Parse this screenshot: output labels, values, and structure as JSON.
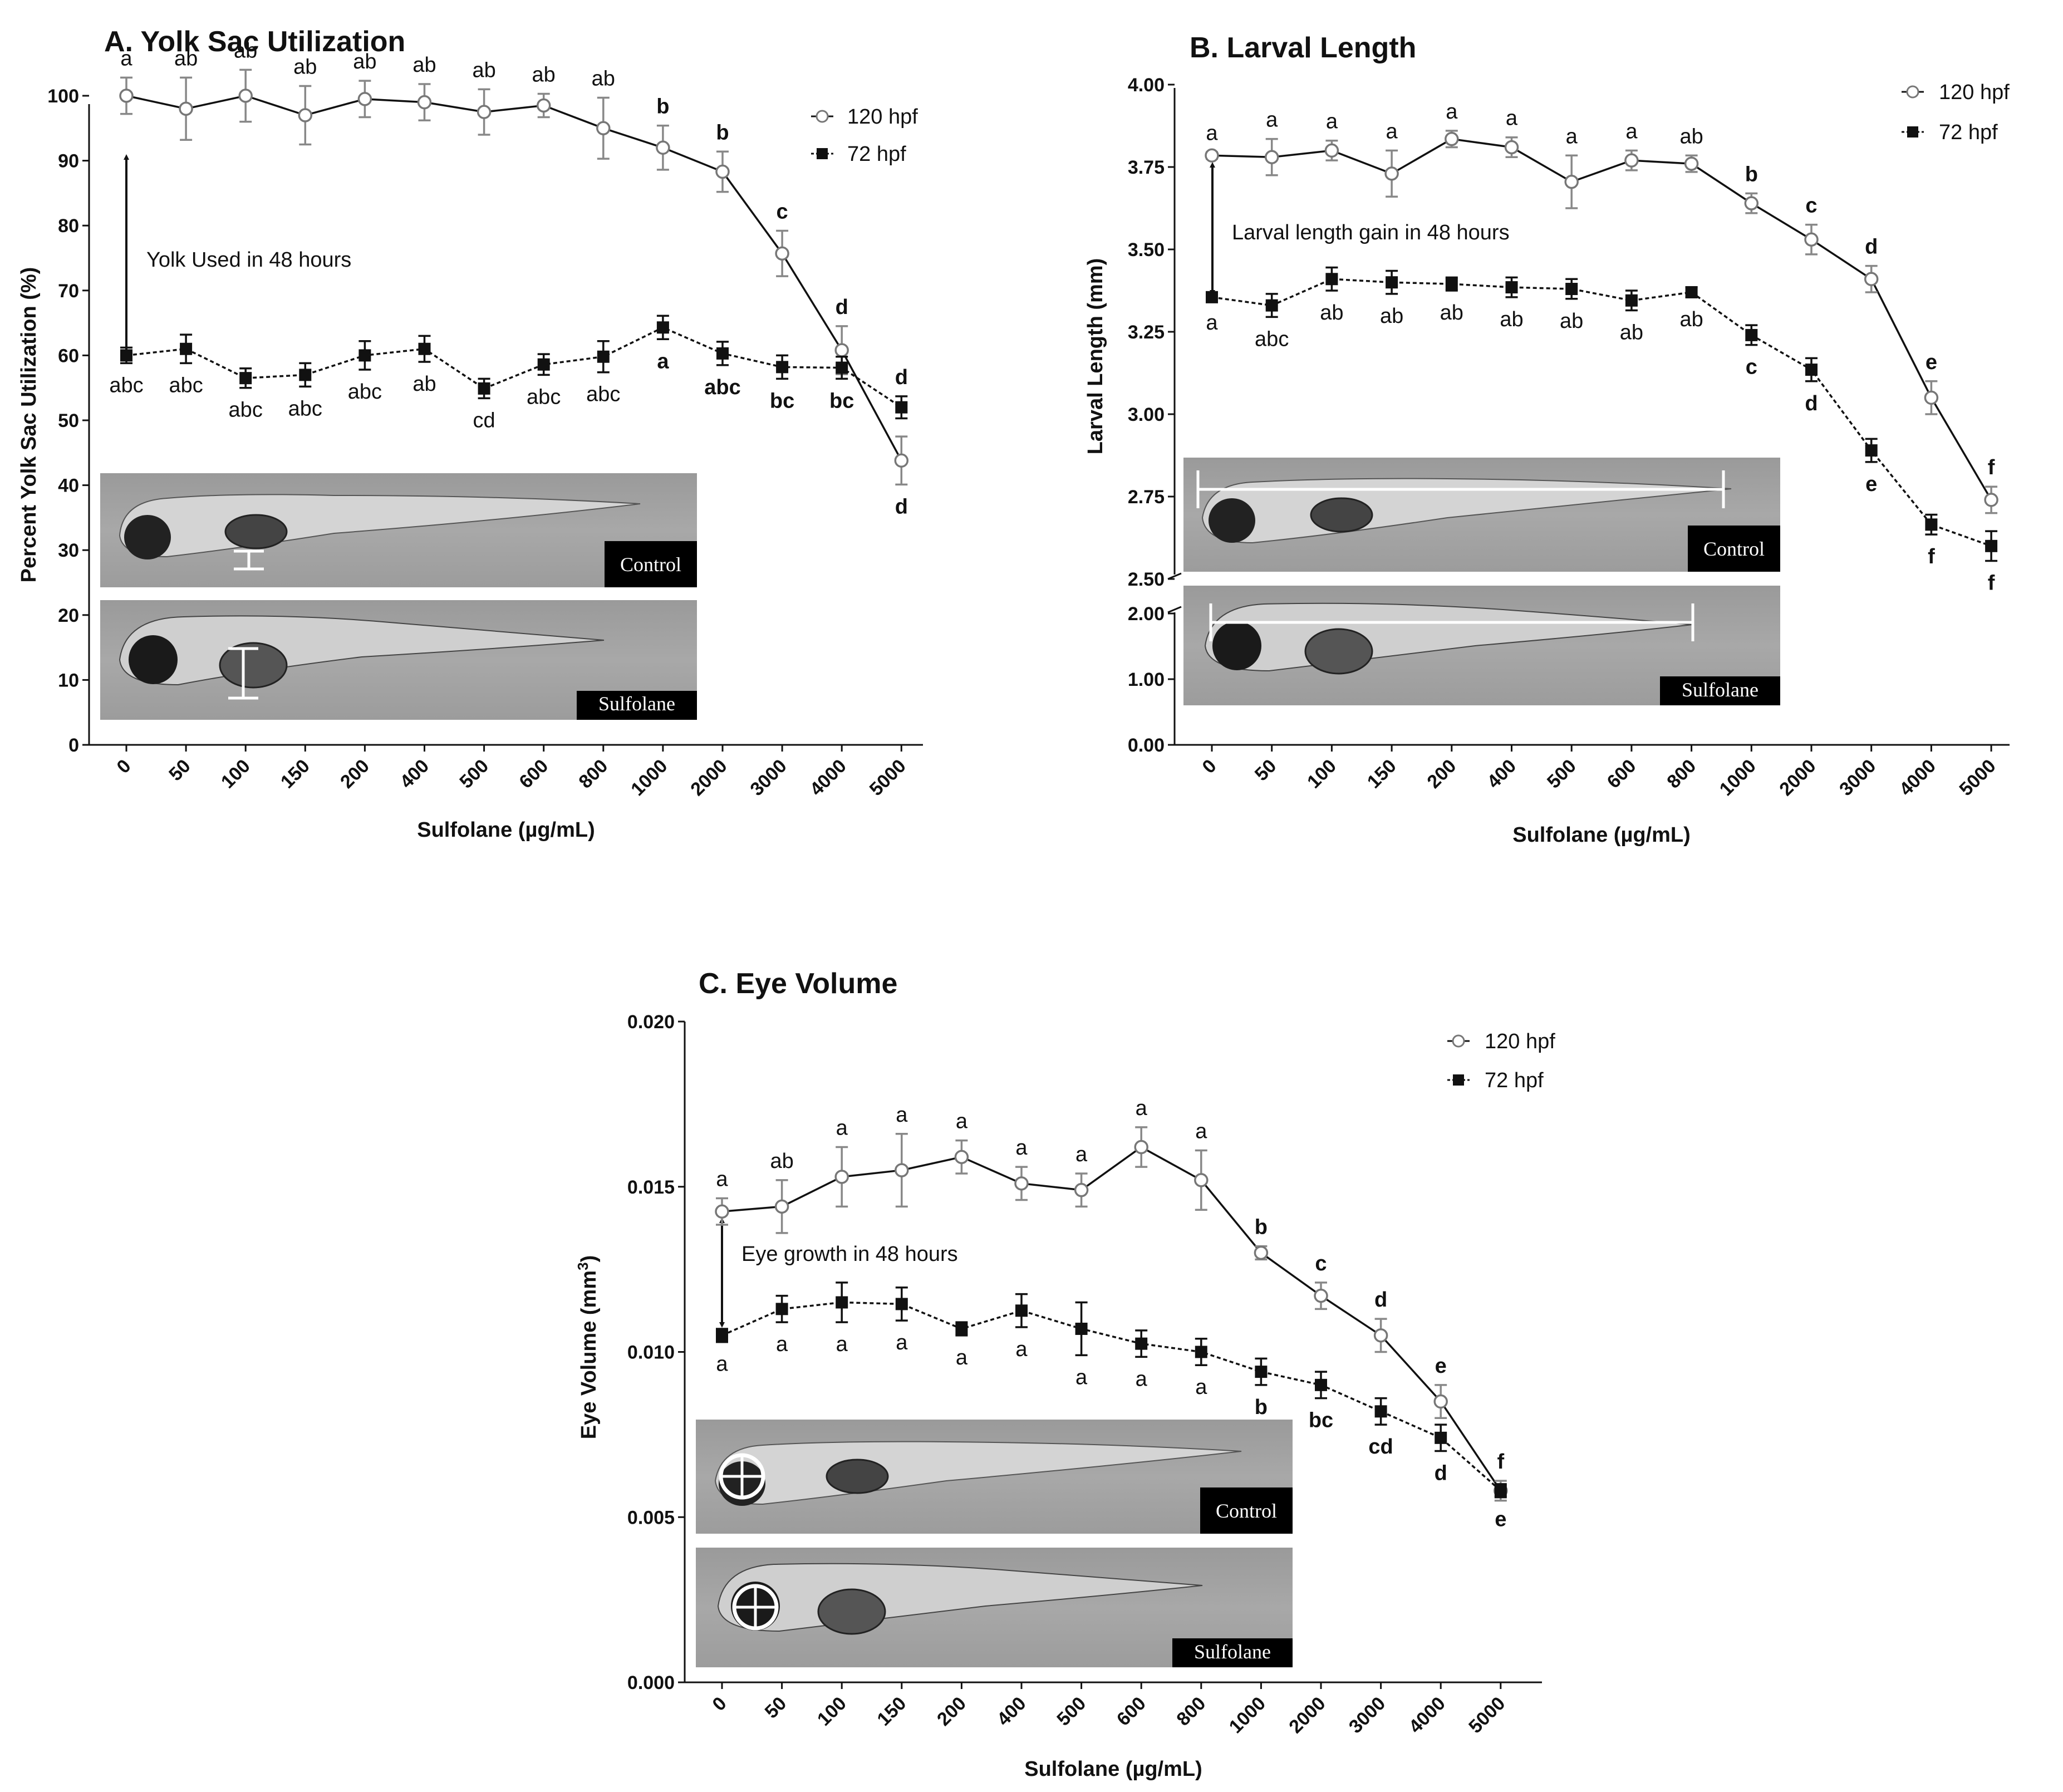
{
  "chart_data": [
    {
      "panel": "A",
      "type": "line",
      "title": "A.  Yolk Sac Utilization",
      "xlabel": "Sulfolane (µg/mL)",
      "ylabel": "Percent Yolk Sac Utilization (%)",
      "categories": [
        "0",
        "50",
        "100",
        "150",
        "200",
        "400",
        "500",
        "600",
        "800",
        "1000",
        "2000",
        "3000",
        "4000",
        "5000"
      ],
      "ylim": [
        0,
        105
      ],
      "yticks": [
        0,
        10,
        20,
        30,
        40,
        50,
        60,
        70,
        80,
        90,
        100
      ],
      "ytick_labels": [
        "0",
        "10",
        "20",
        "30",
        "40",
        "50",
        "60",
        "70",
        "80",
        "90",
        "100"
      ],
      "annotation": "Yolk Used in 48 hours",
      "photo_labels": [
        "Control",
        "Sulfolane"
      ],
      "series": [
        {
          "name": "120 hpf",
          "values": [
            100,
            98,
            100,
            97,
            99.5,
            99,
            97.5,
            98.5,
            95,
            92,
            88.3,
            75.7,
            60.8,
            43.8
          ],
          "errors": [
            2.8,
            4.8,
            4,
            4.5,
            2.8,
            2.8,
            3.5,
            1.8,
            4.7,
            3.4,
            3.1,
            3.5,
            3.7,
            3.7
          ],
          "letters": [
            "a",
            "ab",
            "ab",
            "ab",
            "ab",
            "ab",
            "ab",
            "ab",
            "ab",
            "b",
            "b",
            "c",
            "d",
            "d"
          ]
        },
        {
          "name": "72 hpf",
          "values": [
            60,
            61,
            56.5,
            57,
            60,
            61,
            54.9,
            58.6,
            59.8,
            64.3,
            60.3,
            58.2,
            58.1,
            52
          ],
          "errors": [
            1.2,
            2.2,
            1.5,
            1.8,
            2.2,
            2,
            1.5,
            1.6,
            2.4,
            1.8,
            1.8,
            1.8,
            1.7,
            1.7
          ],
          "letters": [
            "abc",
            "abc",
            "abc",
            "abc",
            "abc",
            "ab",
            "cd",
            "abc",
            "abc",
            "a",
            "abc",
            "bc",
            "bc",
            "d"
          ]
        }
      ]
    },
    {
      "panel": "B",
      "type": "line",
      "title": "B.  Larval Length",
      "xlabel": "Sulfolane (µg/mL)",
      "ylabel": "Larval Length (mm)",
      "categories": [
        "0",
        "50",
        "100",
        "150",
        "200",
        "400",
        "500",
        "600",
        "800",
        "1000",
        "2000",
        "3000",
        "4000",
        "5000"
      ],
      "ylim": [
        0,
        4.0
      ],
      "axis_break": [
        2.0,
        2.5
      ],
      "yticks": [
        0,
        1,
        2,
        2.5,
        2.75,
        3,
        3.25,
        3.5,
        3.75,
        4
      ],
      "ytick_labels": [
        "0.00",
        "1.00",
        "2.00",
        "2.50",
        "2.75",
        "3.00",
        "3.25",
        "3.50",
        "3.75",
        "4.00"
      ],
      "annotation": "Larval length gain in 48 hours",
      "photo_labels": [
        "Control",
        "Sulfolane"
      ],
      "series": [
        {
          "name": "120 hpf",
          "values": [
            3.785,
            3.78,
            3.8,
            3.73,
            3.835,
            3.81,
            3.705,
            3.77,
            3.76,
            3.64,
            3.53,
            3.41,
            3.05,
            2.74
          ],
          "errors": [
            0.01,
            0.055,
            0.03,
            0.07,
            0.025,
            0.03,
            0.08,
            0.03,
            0.025,
            0.03,
            0.045,
            0.04,
            0.05,
            0.04
          ],
          "letters": [
            "a",
            "a",
            "a",
            "a",
            "a",
            "a",
            "a",
            "a",
            "ab",
            "b",
            "c",
            "d",
            "e",
            "f"
          ]
        },
        {
          "name": "72 hpf",
          "values": [
            3.355,
            3.33,
            3.41,
            3.4,
            3.395,
            3.385,
            3.38,
            3.345,
            3.37,
            3.24,
            3.135,
            2.89,
            2.665,
            2.6
          ],
          "errors": [
            0.01,
            0.035,
            0.035,
            0.035,
            0.02,
            0.03,
            0.03,
            0.03,
            0.015,
            0.03,
            0.035,
            0.035,
            0.03,
            0.045
          ],
          "letters": [
            "a",
            "abc",
            "ab",
            "ab",
            "ab",
            "ab",
            "ab",
            "ab",
            "ab",
            "c",
            "d",
            "e",
            "f",
            "f"
          ]
        }
      ]
    },
    {
      "panel": "C",
      "type": "line",
      "title": "C.  Eye Volume",
      "xlabel": "Sulfolane (µg/mL)",
      "ylabel": "Eye Volume (mm",
      "ylabel_sup": "3",
      "ylabel_end": ")",
      "categories": [
        "0",
        "50",
        "100",
        "150",
        "200",
        "400",
        "500",
        "600",
        "800",
        "1000",
        "2000",
        "3000",
        "4000",
        "5000"
      ],
      "ylim": [
        0,
        0.02
      ],
      "yticks": [
        0,
        0.005,
        0.01,
        0.015,
        0.02
      ],
      "ytick_labels": [
        "0.000",
        "0.005",
        "0.010",
        "0.015",
        "0.020"
      ],
      "annotation": "Eye growth in 48 hours",
      "photo_labels": [
        "Control",
        "Sulfolane"
      ],
      "series": [
        {
          "name": "120 hpf",
          "values": [
            0.01425,
            0.0144,
            0.0153,
            0.0155,
            0.0159,
            0.0151,
            0.0149,
            0.0162,
            0.0152,
            0.013,
            0.0117,
            0.0105,
            0.0085,
            0.0058
          ],
          "errors": [
            0.0004,
            0.0008,
            0.0009,
            0.0011,
            0.0005,
            0.0005,
            0.0005,
            0.0006,
            0.0009,
            0.0002,
            0.0004,
            0.0005,
            0.0005,
            0.0003
          ],
          "letters": [
            "a",
            "ab",
            "a",
            "a",
            "a",
            "a",
            "a",
            "a",
            "a",
            "b",
            "c",
            "d",
            "e",
            "f"
          ]
        },
        {
          "name": "72 hpf",
          "values": [
            0.0105,
            0.0113,
            0.0115,
            0.01145,
            0.0107,
            0.01125,
            0.0107,
            0.01025,
            0.01,
            0.0094,
            0.009,
            0.0082,
            0.0074,
            0.0058
          ],
          "errors": [
            0.0002,
            0.0004,
            0.0006,
            0.0005,
            0.0002,
            0.0005,
            0.0008,
            0.0004,
            0.0004,
            0.0004,
            0.0004,
            0.0004,
            0.0004,
            0.0002
          ],
          "letters": [
            "a",
            "a",
            "a",
            "a",
            "a",
            "a",
            "a",
            "a",
            "a",
            "b",
            "bc",
            "cd",
            "d",
            "e"
          ]
        }
      ]
    }
  ]
}
